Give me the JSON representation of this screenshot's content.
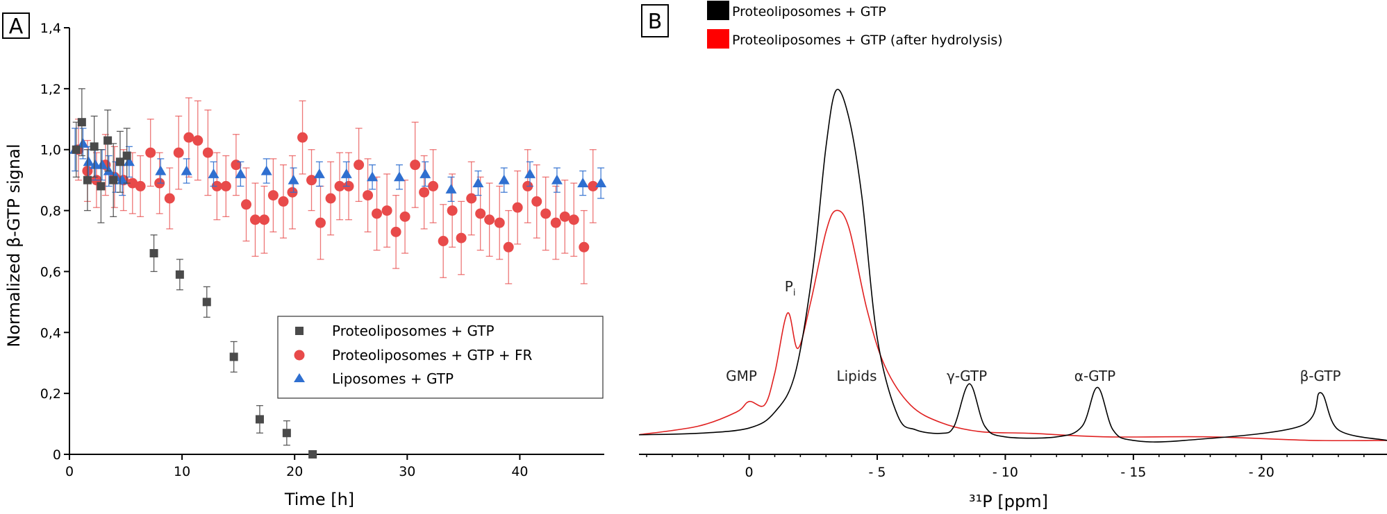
{
  "chart_data": [
    {
      "panel_label": "A",
      "type": "scatter",
      "xlabel": "Time [h]",
      "ylabel": "Normalized β-GTP signal",
      "xlim": [
        0,
        47.5
      ],
      "ylim": [
        0,
        1.4
      ],
      "x_ticks": [
        "0",
        "10",
        "20",
        "30",
        "40"
      ],
      "x_tick_values": [
        0,
        10,
        20,
        30,
        40
      ],
      "y_ticks": [
        "0",
        "0,2",
        "0,4",
        "0,6",
        "0,8",
        "1,0",
        "1,2",
        "1,4"
      ],
      "y_tick_values": [
        0,
        0.2,
        0.4,
        0.6,
        0.8,
        1.0,
        1.2,
        1.4
      ],
      "legend_position": "bottom-right",
      "series": [
        {
          "name": "Proteoliposomes + GTP",
          "marker": "square",
          "color": "#4a4a4a",
          "x": [
            0.6,
            1.1,
            1.6,
            2.2,
            2.8,
            3.4,
            3.9,
            4.5,
            5.1,
            7.5,
            9.8,
            12.2,
            14.6,
            16.9,
            19.3,
            21.6
          ],
          "y": [
            1.0,
            1.09,
            0.9,
            1.01,
            0.88,
            1.03,
            0.9,
            0.96,
            0.98,
            0.66,
            0.59,
            0.5,
            0.32,
            0.115,
            0.07,
            0.0
          ],
          "err": [
            0.09,
            0.11,
            0.1,
            0.1,
            0.12,
            0.1,
            0.12,
            0.1,
            0.09,
            0.06,
            0.05,
            0.05,
            0.05,
            0.045,
            0.04,
            0.0
          ]
        },
        {
          "name": "Proteoliposomes + GTP + FR",
          "marker": "circle",
          "color": "#e84a4a",
          "x": [
            0.8,
            1.6,
            2.4,
            3.2,
            4.0,
            4.8,
            5.6,
            6.3,
            7.2,
            8.0,
            8.9,
            9.7,
            10.6,
            11.4,
            12.3,
            13.1,
            13.9,
            14.8,
            15.7,
            16.5,
            17.3,
            18.1,
            19.0,
            19.8,
            20.7,
            21.5,
            22.3,
            23.2,
            24.0,
            24.8,
            25.7,
            26.5,
            27.3,
            28.2,
            29.0,
            29.8,
            30.7,
            31.5,
            32.3,
            33.2,
            34.0,
            34.8,
            35.7,
            36.5,
            37.3,
            38.2,
            39.0,
            39.8,
            40.7,
            41.5,
            42.3,
            43.2,
            44.0,
            44.8,
            45.7,
            46.5
          ],
          "y": [
            1.0,
            0.93,
            0.9,
            0.95,
            0.91,
            0.9,
            0.89,
            0.88,
            0.99,
            0.89,
            0.84,
            0.99,
            1.04,
            1.03,
            0.99,
            0.88,
            0.88,
            0.95,
            0.82,
            0.77,
            0.77,
            0.85,
            0.83,
            0.86,
            1.04,
            0.9,
            0.76,
            0.84,
            0.88,
            0.88,
            0.95,
            0.85,
            0.79,
            0.8,
            0.73,
            0.78,
            0.95,
            0.86,
            0.88,
            0.7,
            0.8,
            0.71,
            0.84,
            0.79,
            0.77,
            0.76,
            0.68,
            0.81,
            0.88,
            0.83,
            0.79,
            0.76,
            0.78,
            0.77,
            0.68,
            0.88
          ],
          "err": [
            0.1,
            0.1,
            0.09,
            0.1,
            0.1,
            0.1,
            0.1,
            0.1,
            0.11,
            0.1,
            0.1,
            0.12,
            0.13,
            0.13,
            0.14,
            0.11,
            0.1,
            0.1,
            0.12,
            0.12,
            0.11,
            0.12,
            0.12,
            0.12,
            0.12,
            0.1,
            0.12,
            0.12,
            0.11,
            0.11,
            0.12,
            0.12,
            0.12,
            0.12,
            0.12,
            0.12,
            0.14,
            0.12,
            0.12,
            0.12,
            0.12,
            0.12,
            0.12,
            0.12,
            0.12,
            0.12,
            0.12,
            0.12,
            0.12,
            0.12,
            0.12,
            0.12,
            0.12,
            0.12,
            0.12,
            0.12
          ]
        },
        {
          "name": "Liposomes + GTP",
          "marker": "triangle",
          "color": "#2f6fd0",
          "x": [
            0.5,
            1.2,
            1.7,
            2.3,
            2.9,
            3.5,
            4.1,
            4.7,
            5.3,
            8.1,
            10.4,
            12.8,
            15.2,
            17.5,
            19.9,
            22.2,
            24.6,
            26.9,
            29.3,
            31.6,
            33.9,
            36.3,
            38.6,
            40.9,
            43.3,
            45.6,
            47.2
          ],
          "y": [
            1.0,
            1.02,
            0.96,
            0.95,
            0.95,
            0.93,
            0.91,
            0.9,
            0.96,
            0.93,
            0.93,
            0.92,
            0.92,
            0.93,
            0.9,
            0.92,
            0.92,
            0.91,
            0.91,
            0.92,
            0.87,
            0.89,
            0.9,
            0.92,
            0.9,
            0.89,
            0.89
          ],
          "err": [
            0.07,
            0.05,
            0.05,
            0.05,
            0.05,
            0.05,
            0.05,
            0.05,
            0.05,
            0.04,
            0.04,
            0.04,
            0.04,
            0.04,
            0.04,
            0.04,
            0.04,
            0.04,
            0.04,
            0.04,
            0.04,
            0.04,
            0.04,
            0.04,
            0.04,
            0.04,
            0.05
          ]
        }
      ]
    },
    {
      "panel_label": "B",
      "type": "line",
      "xlabel": "³¹P [ppm]",
      "ylabel": "",
      "x_reversed": true,
      "xlim": [
        4.3,
        -24.9
      ],
      "ylim": [
        0,
        1.0
      ],
      "x_ticks": [
        "0",
        "- 5",
        "- 10",
        "- 15",
        "- 20"
      ],
      "x_tick_values": [
        0,
        -5,
        -10,
        -15,
        -20
      ],
      "legend_position": "top-left",
      "series": [
        {
          "name": "Proteoliposomes + GTP",
          "color": "#000000",
          "x": [
            4.3,
            2,
            0,
            -1,
            -1.8,
            -2.5,
            -3.0,
            -3.4,
            -3.9,
            -4.4,
            -5.0,
            -5.8,
            -6.5,
            -7.5,
            -8.0,
            -8.6,
            -9.2,
            -10,
            -12,
            -13.0,
            -13.6,
            -14.2,
            -15,
            -17,
            -21.5,
            -22.3,
            -23.0,
            -24.9
          ],
          "y": [
            0.026,
            0.03,
            0.045,
            0.09,
            0.2,
            0.5,
            0.84,
            1.0,
            0.92,
            0.7,
            0.3,
            0.08,
            0.04,
            0.03,
            0.05,
            0.17,
            0.05,
            0.02,
            0.02,
            0.05,
            0.16,
            0.04,
            0.01,
            0.01,
            0.05,
            0.145,
            0.04,
            0.01
          ]
        },
        {
          "name": "Proteoliposomes + GTP (after hydrolysis)",
          "color": "#e02020",
          "x": [
            4.3,
            2,
            0.5,
            0,
            -0.6,
            -1.0,
            -1.5,
            -1.9,
            -2.4,
            -3.0,
            -3.4,
            -3.9,
            -4.6,
            -5.3,
            -6.3,
            -7.5,
            -9,
            -11,
            -14,
            -18,
            -22,
            -24.9
          ],
          "y": [
            0.026,
            0.05,
            0.09,
            0.12,
            0.11,
            0.2,
            0.37,
            0.27,
            0.4,
            0.6,
            0.66,
            0.61,
            0.38,
            0.22,
            0.11,
            0.06,
            0.035,
            0.03,
            0.02,
            0.02,
            0.01,
            0.01
          ]
        }
      ],
      "annotations": [
        {
          "text": "GMP",
          "x": 0.3
        },
        {
          "text": "P",
          "subscript": "i",
          "x": -1.6
        },
        {
          "text": "Lipids",
          "x": -4.2
        },
        {
          "text": "γ-GTP",
          "x": -8.5
        },
        {
          "text": "α-GTP",
          "x": -13.5
        },
        {
          "text": "β-GTP",
          "x": -22.3
        }
      ]
    }
  ]
}
